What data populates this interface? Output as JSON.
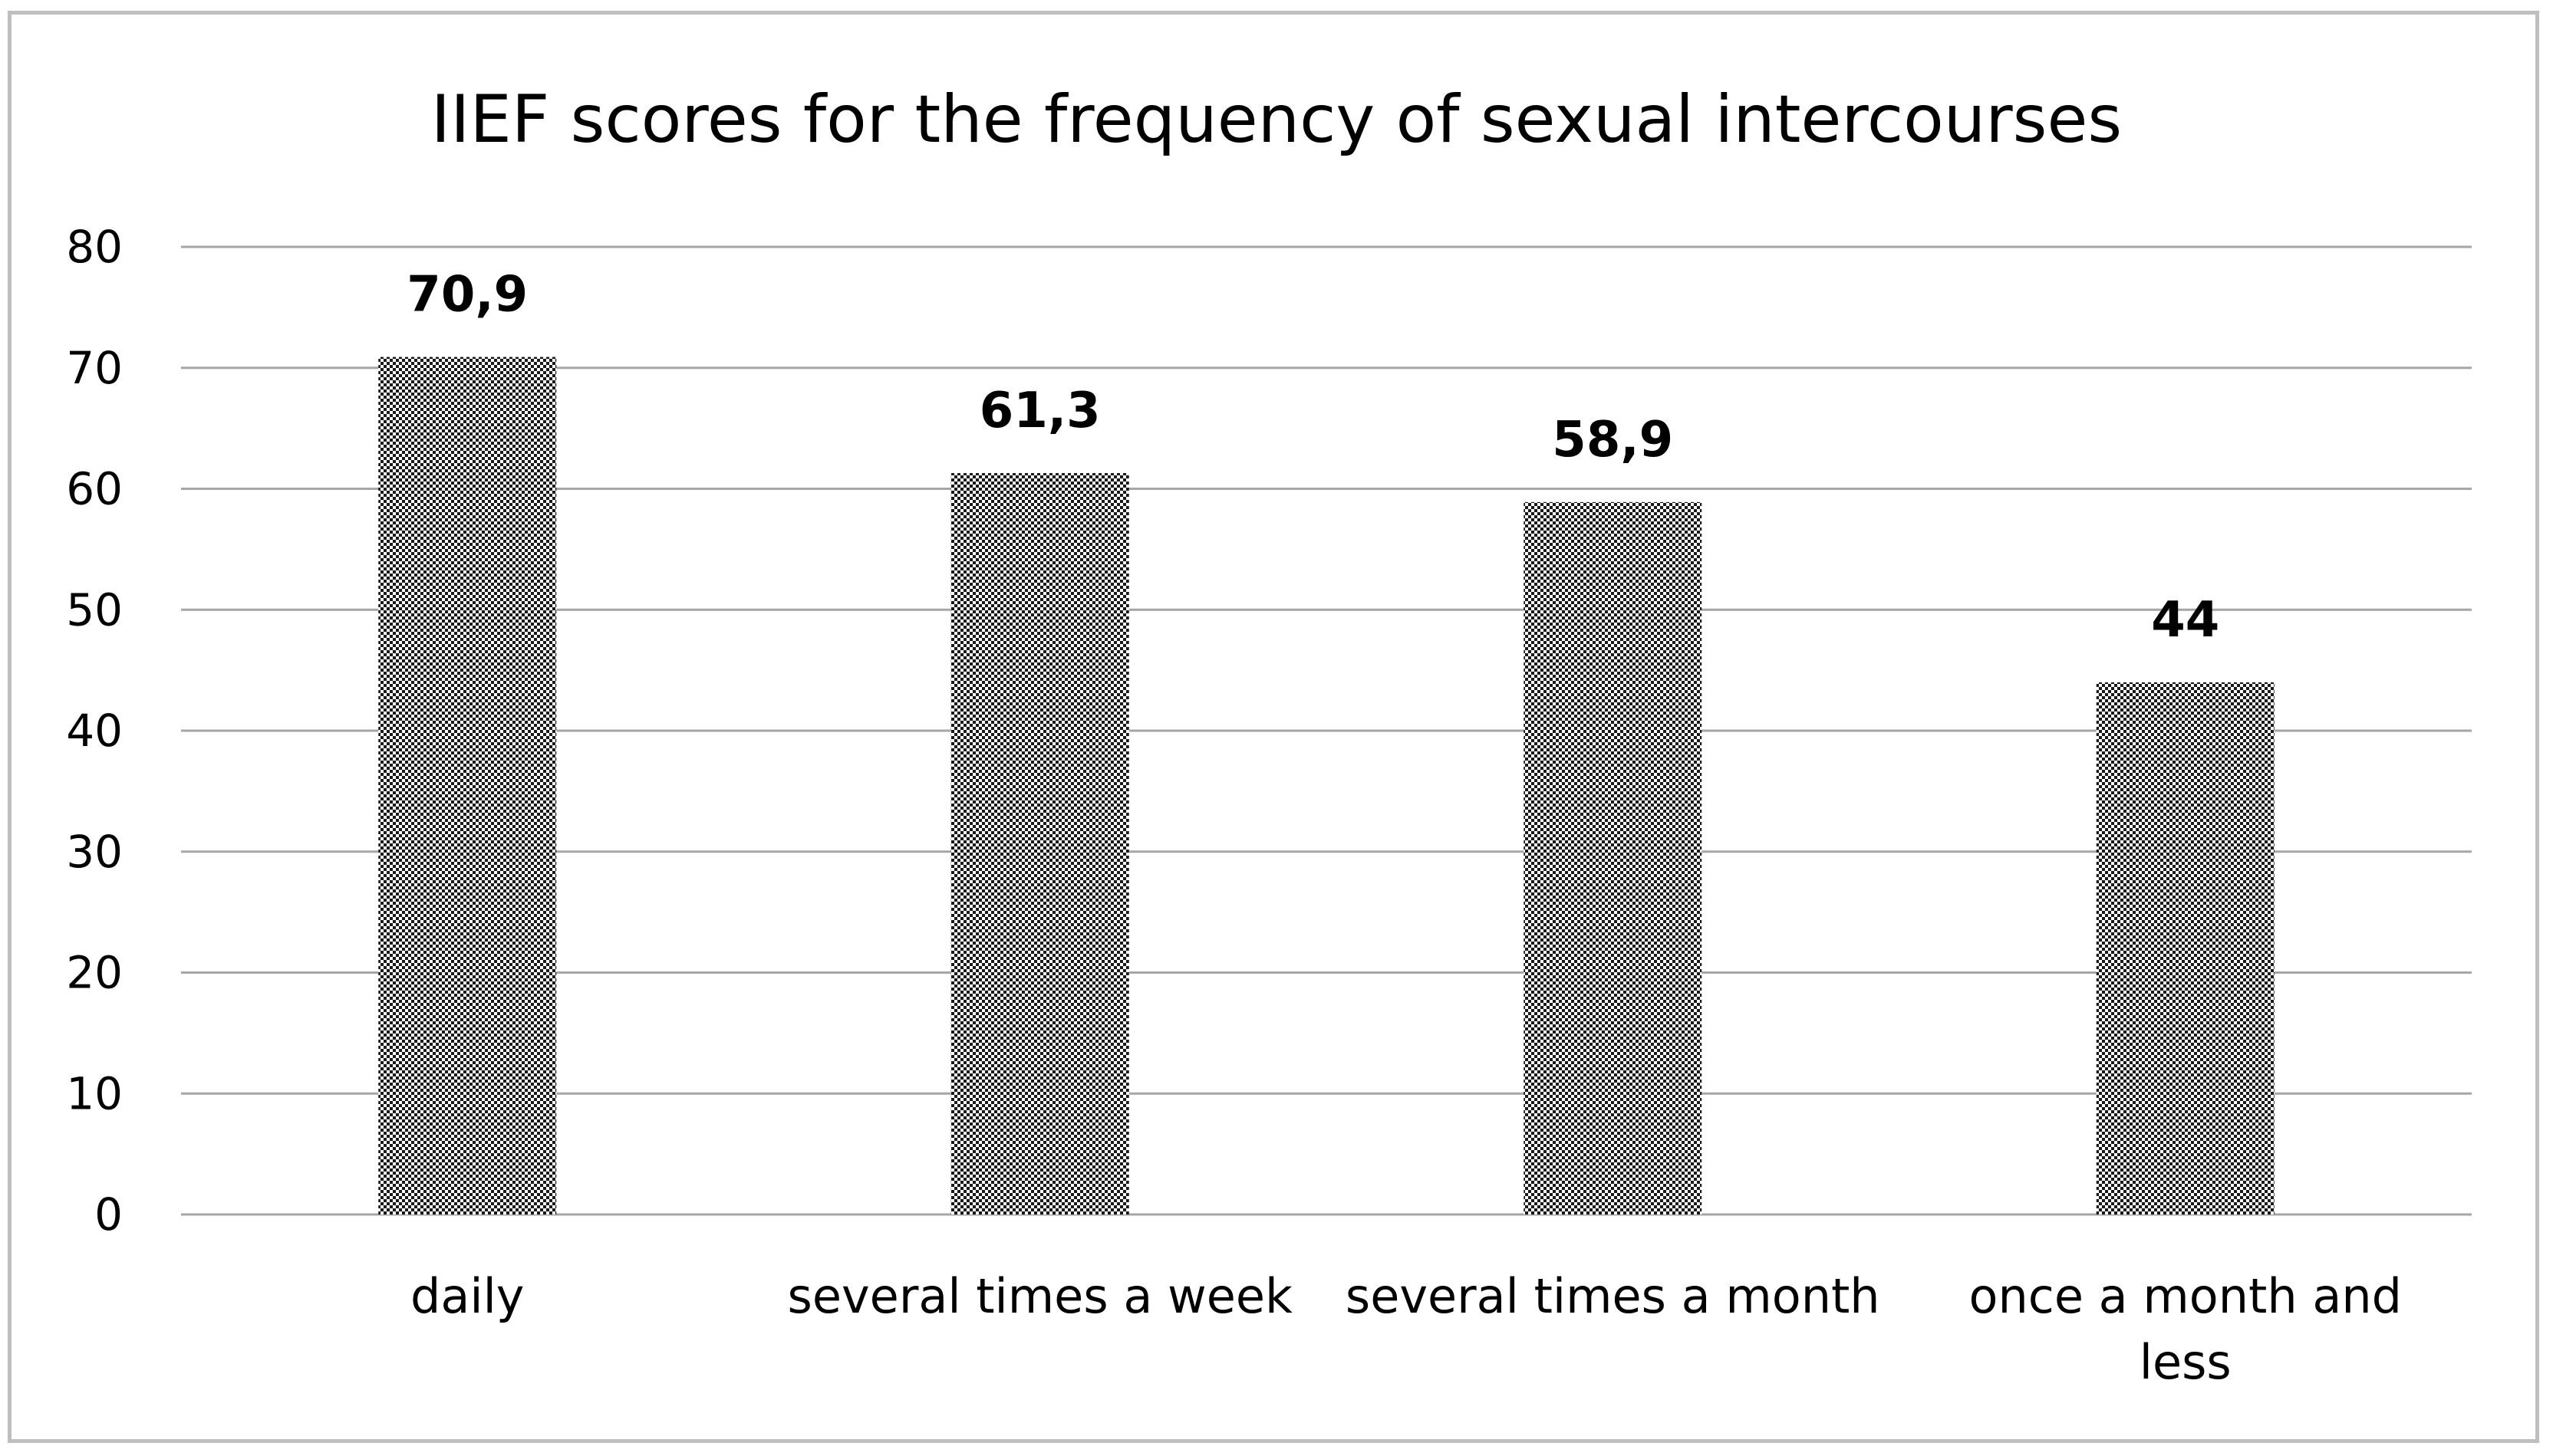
{
  "chart_data": {
    "type": "bar",
    "title": "IIEF scores for the frequency of sexual intercourses",
    "categories": [
      [
        "daily"
      ],
      [
        "several times a week"
      ],
      [
        "several times a month"
      ],
      [
        "once a month and",
        "less"
      ]
    ],
    "values": [
      70.9,
      61.3,
      58.9,
      44
    ],
    "data_labels": [
      "70,9",
      "61,3",
      "58,9",
      "44"
    ],
    "y_ticks": [
      "0",
      "10",
      "20",
      "30",
      "40",
      "50",
      "60",
      "70",
      "80"
    ],
    "ylim": [
      0,
      80
    ],
    "xlabel": "",
    "ylabel": "",
    "grid": true,
    "legend": "none",
    "colors": {
      "bar_dark": "#1a1a1a",
      "bar_light": "#ffffff",
      "grid": "#a6a6a6",
      "frame": "#bfbfbf"
    }
  }
}
